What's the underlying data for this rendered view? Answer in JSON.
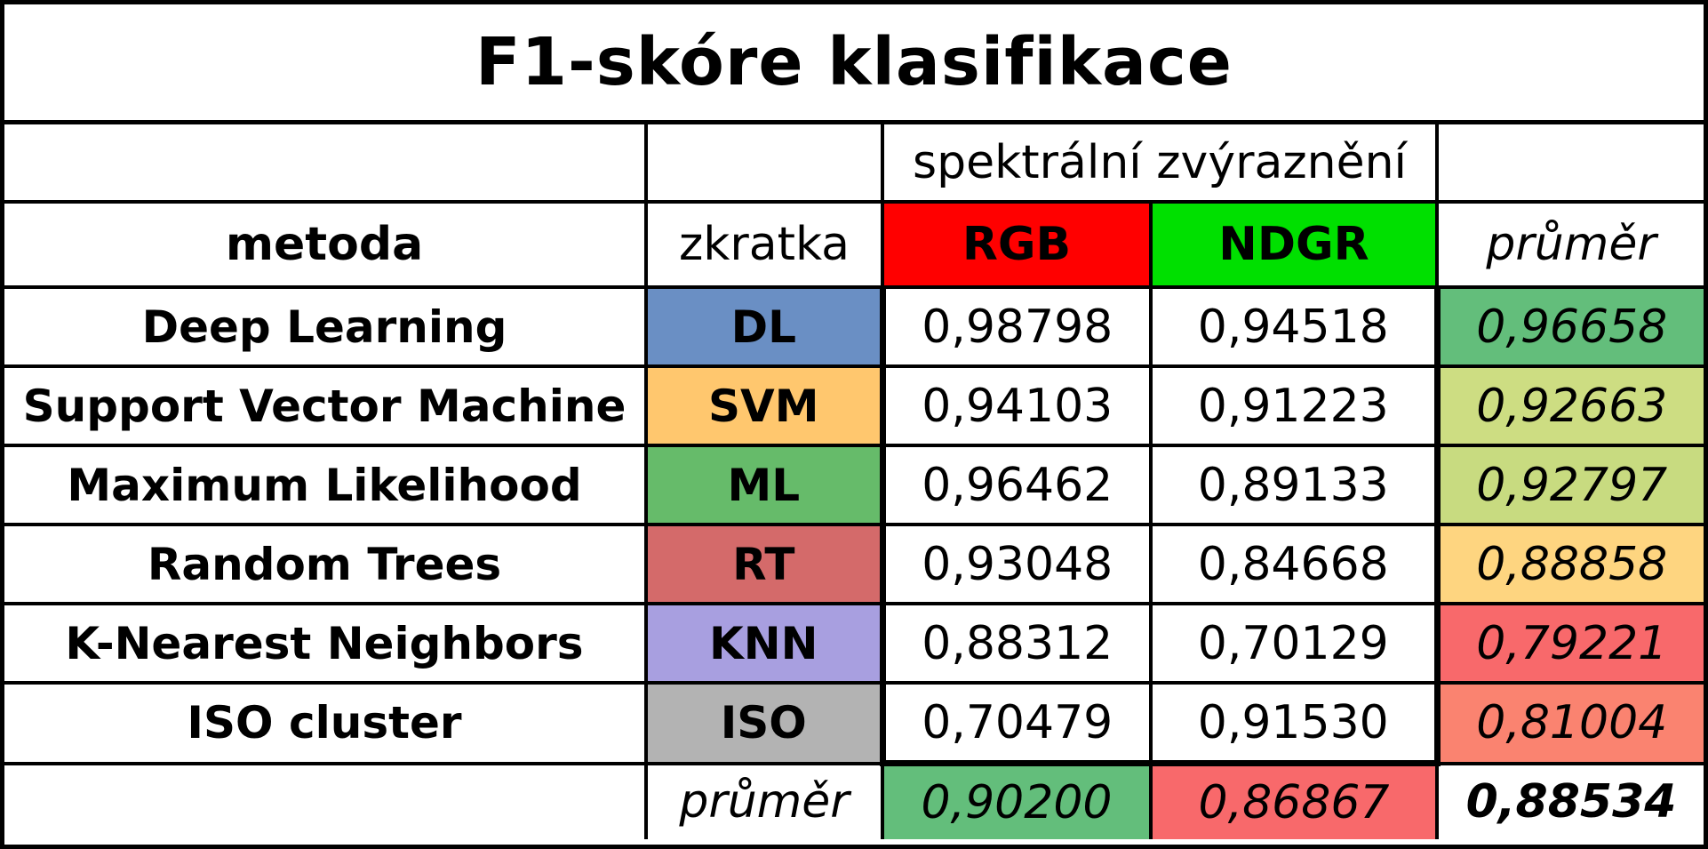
{
  "title": "F1-skóre klasifikace",
  "header": {
    "group_label": "spektrální zvýraznění",
    "method": "metoda",
    "abbr": "zkratka",
    "rgb": "RGB",
    "ndgr": "NDGR",
    "avg": "průměr"
  },
  "colors": {
    "rgb_header": "#ff0000",
    "ndgr_header": "#00e000",
    "dl": "#6a8fc4",
    "svm": "#ffc76e",
    "ml": "#66bb6a",
    "rt": "#d46a6a",
    "knn": "#a89fe0",
    "iso": "#b3b3b3"
  },
  "rows": [
    {
      "method": "Deep Learning",
      "abbr": "DL",
      "rgb": "0,98798",
      "ndgr": "0,94518",
      "avg": "0,96658",
      "abbr_color": "#6a8fc4",
      "avg_color": "#63be7b"
    },
    {
      "method": "Support Vector Machine",
      "abbr": "SVM",
      "rgb": "0,94103",
      "ndgr": "0,91223",
      "avg": "0,92663",
      "abbr_color": "#ffc76e",
      "avg_color": "#cddd82"
    },
    {
      "method": "Maximum Likelihood",
      "abbr": "ML",
      "rgb": "0,96462",
      "ndgr": "0,89133",
      "avg": "0,92797",
      "abbr_color": "#66bb6a",
      "avg_color": "#c8db80"
    },
    {
      "method": "Random Trees",
      "abbr": "RT",
      "rgb": "0,93048",
      "ndgr": "0,84668",
      "avg": "0,88858",
      "abbr_color": "#d46a6a",
      "avg_color": "#fed580"
    },
    {
      "method": "K-Nearest Neighbors",
      "abbr": "KNN",
      "rgb": "0,88312",
      "ndgr": "0,70129",
      "avg": "0,79221",
      "abbr_color": "#a89fe0",
      "avg_color": "#f8696b"
    },
    {
      "method": "ISO cluster",
      "abbr": "ISO",
      "rgb": "0,70479",
      "ndgr": "0,91530",
      "avg": "0,81004",
      "abbr_color": "#b3b3b3",
      "avg_color": "#fa8370"
    }
  ],
  "footer": {
    "label": "průměr",
    "rgb_avg": "0,90200",
    "ndgr_avg": "0,86867",
    "total_avg": "0,88534",
    "rgb_avg_color": "#63be7b",
    "ndgr_avg_color": "#f8696b"
  }
}
